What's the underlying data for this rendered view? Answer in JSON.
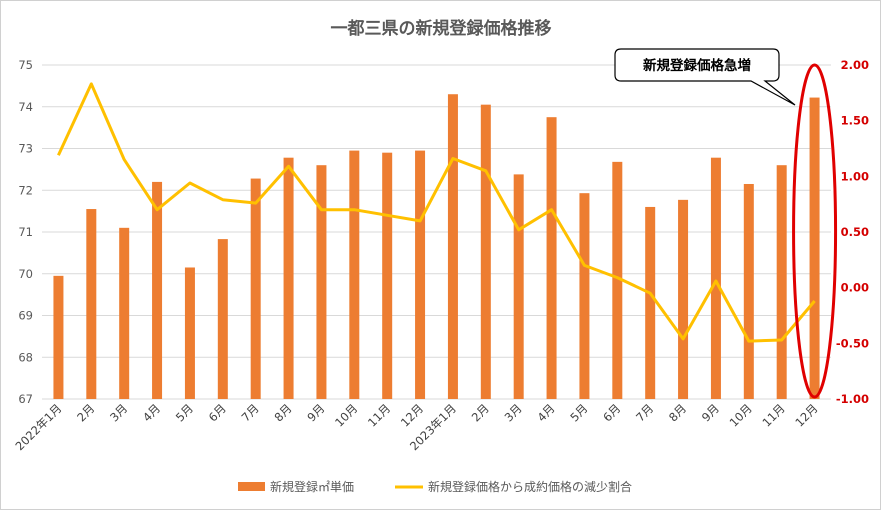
{
  "chart_data": {
    "type": "bar+line",
    "title": "一都三県の新規登録価格推移",
    "categories": [
      "2022年1月",
      "2月",
      "3月",
      "4月",
      "5月",
      "6月",
      "7月",
      "8月",
      "9月",
      "10月",
      "11月",
      "12月",
      "2023年1月",
      "2月",
      "3月",
      "4月",
      "5月",
      "6月",
      "7月",
      "8月",
      "9月",
      "10月",
      "11月",
      "12月"
    ],
    "series": [
      {
        "name": "新規登録㎡単価",
        "type": "bar",
        "axis": "left",
        "color": "#ed7d31",
        "values": [
          69.95,
          71.55,
          71.1,
          72.2,
          70.15,
          70.83,
          72.28,
          72.78,
          72.6,
          72.95,
          72.9,
          72.95,
          74.3,
          74.05,
          72.38,
          73.75,
          71.93,
          72.68,
          71.6,
          71.77,
          72.78,
          72.15,
          72.6,
          74.22
        ]
      },
      {
        "name": "新規登録価格から成約価格の減少割合",
        "type": "line",
        "axis": "right",
        "color": "#ffc000",
        "values": [
          1.19,
          1.83,
          1.15,
          0.7,
          0.94,
          0.79,
          0.76,
          1.09,
          0.7,
          0.7,
          0.65,
          0.6,
          1.16,
          1.05,
          0.52,
          0.7,
          0.2,
          0.09,
          -0.05,
          -0.46,
          0.06,
          -0.48,
          -0.47,
          -0.12
        ]
      }
    ],
    "yleft": {
      "lim": [
        67,
        75
      ],
      "ticks": [
        "67",
        "68",
        "69",
        "70",
        "71",
        "72",
        "73",
        "74",
        "75"
      ]
    },
    "yright": {
      "lim": [
        -1.0,
        2.0
      ],
      "ticks": [
        "-1.00",
        "-0.50",
        "0.00",
        "0.50",
        "1.00",
        "1.50",
        "2.00"
      ],
      "color": "#d40000"
    },
    "grid": true,
    "legend_position": "bottom",
    "annotation": {
      "text": "新規登録価格急増",
      "target_index": 23,
      "ellipse_color": "#e00000"
    }
  }
}
